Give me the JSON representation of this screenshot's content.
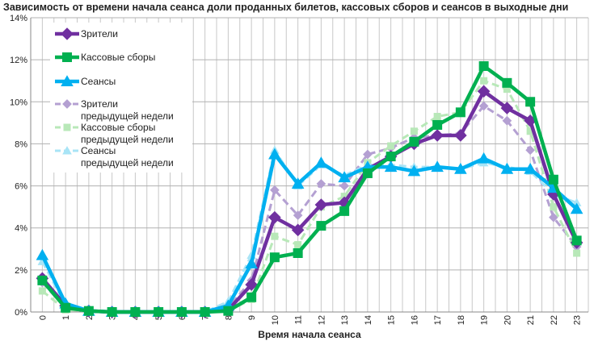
{
  "chart_data": {
    "type": "line",
    "title": "Зависимость от времени начала сеанса доли проданных билетов, кассовых сборов и сеансов в выходные дни",
    "xlabel": "Время начала сеанса",
    "ylabel": "",
    "categories": [
      "0",
      "1",
      "2",
      "3",
      "4",
      "5",
      "6",
      "7",
      "8",
      "9",
      "10",
      "11",
      "12",
      "13",
      "14",
      "15",
      "16",
      "17",
      "18",
      "19",
      "20",
      "21",
      "22",
      "23"
    ],
    "ylim": [
      0,
      14
    ],
    "yticks": [
      "0%",
      "2%",
      "4%",
      "6%",
      "8%",
      "10%",
      "12%",
      "14%"
    ],
    "grid": true,
    "legend_position": "top-left",
    "series": [
      {
        "name": "Зрители",
        "color": "#7030a0",
        "marker": "diamond",
        "dashed": false,
        "values": [
          1.6,
          0.3,
          0.05,
          0,
          0,
          0,
          0,
          0,
          0.1,
          1.3,
          4.5,
          3.9,
          5.1,
          5.2,
          6.8,
          7.4,
          8.0,
          8.4,
          8.4,
          10.5,
          9.7,
          9.1,
          5.6,
          3.3
        ]
      },
      {
        "name": "Кассовые сборы",
        "color": "#00b050",
        "marker": "square",
        "dashed": false,
        "values": [
          1.5,
          0.2,
          0.05,
          0,
          0,
          0,
          0,
          0,
          0.05,
          0.7,
          2.6,
          2.8,
          4.1,
          4.8,
          6.6,
          7.4,
          8.1,
          8.9,
          9.5,
          11.7,
          10.9,
          10.0,
          6.3,
          3.4
        ]
      },
      {
        "name": "Сеансы",
        "color": "#00b0f0",
        "marker": "triangle",
        "dashed": false,
        "values": [
          2.7,
          0.4,
          0.05,
          0,
          0,
          0,
          0,
          0,
          0.3,
          2.3,
          7.5,
          6.1,
          7.1,
          6.4,
          6.9,
          6.9,
          6.7,
          6.9,
          6.8,
          7.3,
          6.8,
          6.8,
          5.9,
          4.9
        ]
      },
      {
        "name": "Зрители предыдущей недели",
        "color": "#b4a0d2",
        "marker": "diamond",
        "dashed": true,
        "values": [
          1.4,
          0.2,
          0.05,
          0,
          0,
          0,
          0,
          0,
          0.2,
          1.5,
          5.8,
          4.6,
          6.1,
          6.0,
          7.5,
          7.8,
          8.3,
          8.4,
          8.5,
          9.8,
          9.1,
          7.7,
          4.5,
          3.1
        ]
      },
      {
        "name": "Кассовые сборы предыдущей недели",
        "color": "#b8e8b8",
        "marker": "square",
        "dashed": true,
        "values": [
          1.0,
          0.1,
          0.05,
          0,
          0,
          0,
          0,
          0,
          0.05,
          0.6,
          3.6,
          3.2,
          5.0,
          5.5,
          7.1,
          7.9,
          8.6,
          9.3,
          9.5,
          11.0,
          10.6,
          8.6,
          5.0,
          2.8
        ]
      },
      {
        "name": "Сеансы предыдущей недели",
        "color": "#a8e4f6",
        "marker": "triangle",
        "dashed": true,
        "values": [
          2.4,
          0.3,
          0.05,
          0,
          0,
          0,
          0,
          0,
          0.5,
          2.7,
          7.7,
          6.0,
          7.0,
          6.5,
          7.0,
          7.0,
          6.9,
          6.9,
          6.8,
          7.1,
          6.9,
          6.7,
          5.6,
          5.2
        ]
      }
    ],
    "legend_lines": [
      [
        "Зрители"
      ],
      [
        "Кассовые сборы"
      ],
      [
        "Сеансы"
      ],
      [
        "Зрители",
        "предыдущей недели"
      ],
      [
        "Кассовые сборы",
        "предыдущей недели"
      ],
      [
        "Сеансы",
        "предыдущей недели"
      ]
    ]
  }
}
